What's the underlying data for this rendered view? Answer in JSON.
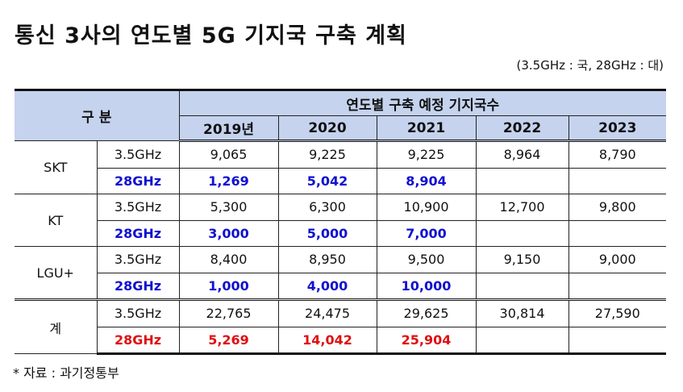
{
  "title": "통신 3사의 연도별 5G 기지국 구축 계획",
  "unit_note": "(3.5GHz : 국, 28GHz : 대)",
  "header": {
    "category": "구 분",
    "group": "연도별 구축 예정 기지국수",
    "years": [
      "2019년",
      "2020",
      "2021",
      "2022",
      "2023"
    ]
  },
  "rows": [
    {
      "carrier": "SKT",
      "r35": {
        "band": "3.5GHz",
        "values": [
          "9,065",
          "9,225",
          "9,225",
          "8,964",
          "8,790"
        ]
      },
      "r28": {
        "band": "28GHz",
        "values": [
          "1,269",
          "5,042",
          "8,904",
          "",
          ""
        ]
      }
    },
    {
      "carrier": "KT",
      "r35": {
        "band": "3.5GHz",
        "values": [
          "5,300",
          "6,300",
          "10,900",
          "12,700",
          "9,800"
        ]
      },
      "r28": {
        "band": "28GHz",
        "values": [
          "3,000",
          "5,000",
          "7,000",
          "",
          ""
        ]
      }
    },
    {
      "carrier": "LGU+",
      "r35": {
        "band": "3.5GHz",
        "values": [
          "8,400",
          "8,950",
          "9,500",
          "9,150",
          "9,000"
        ]
      },
      "r28": {
        "band": "28GHz",
        "values": [
          "1,000",
          "4,000",
          "10,000",
          "",
          ""
        ]
      }
    },
    {
      "carrier": "계",
      "r35": {
        "band": "3.5GHz",
        "values": [
          "22,765",
          "24,475",
          "29,625",
          "30,814",
          "27,590"
        ]
      },
      "r28": {
        "band": "28GHz",
        "values": [
          "5,269",
          "14,042",
          "25,904",
          "",
          ""
        ]
      }
    }
  ],
  "footnote": "* 자료 : 과기정통부",
  "colors": {
    "header_bg": "#c5d3ee",
    "carrier_28": "#1010d0",
    "total_28": "#e01010"
  }
}
